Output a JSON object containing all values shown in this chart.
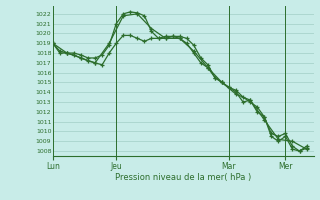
{
  "background_color": "#c8ece8",
  "grid_color": "#a8d4cc",
  "line_color": "#2d6e2d",
  "ylabel": "Pression niveau de la mer( hPa )",
  "ylim": [
    1007.5,
    1022.8
  ],
  "yticks": [
    1008,
    1009,
    1010,
    1011,
    1012,
    1013,
    1014,
    1015,
    1016,
    1017,
    1018,
    1019,
    1020,
    1021,
    1022
  ],
  "day_labels": [
    "Lun",
    "Jeu",
    "Mar",
    "Mer"
  ],
  "day_positions": [
    0,
    9,
    25,
    33
  ],
  "xlim": [
    0,
    37
  ],
  "series1_x": [
    0,
    1,
    2,
    3,
    4,
    5,
    6,
    7,
    8,
    9,
    10,
    11,
    12,
    13,
    14,
    15,
    16,
    17,
    18,
    19,
    20,
    21,
    22,
    23,
    24,
    25,
    26,
    27,
    28,
    29,
    30,
    31,
    32,
    33,
    34,
    35,
    36
  ],
  "series1_y": [
    1019.0,
    1018.0,
    1018.0,
    1018.0,
    1017.8,
    1017.5,
    1017.5,
    1017.8,
    1018.8,
    1021.0,
    1022.0,
    1022.2,
    1022.1,
    1021.8,
    1020.2,
    1019.5,
    1019.5,
    1019.7,
    1019.7,
    1019.5,
    1018.8,
    1017.5,
    1016.8,
    1015.5,
    1015.0,
    1014.5,
    1014.0,
    1013.0,
    1013.2,
    1012.0,
    1011.5,
    1009.5,
    1009.0,
    1009.5,
    1008.2,
    1008.0,
    1008.3
  ],
  "series2_x": [
    0,
    1,
    2,
    3,
    4,
    5,
    6,
    7,
    8,
    9,
    10,
    11,
    12,
    13,
    14,
    15,
    16,
    17,
    18,
    19,
    20,
    21,
    22,
    23,
    24,
    25,
    26,
    27,
    28,
    29,
    30,
    31,
    32,
    33,
    34,
    35,
    36
  ],
  "series2_y": [
    1019.0,
    1018.2,
    1018.0,
    1017.8,
    1017.5,
    1017.2,
    1017.0,
    1016.8,
    1018.0,
    1019.0,
    1019.8,
    1019.8,
    1019.5,
    1019.2,
    1019.5,
    1019.5,
    1019.7,
    1019.7,
    1019.5,
    1019.0,
    1018.0,
    1017.0,
    1016.5,
    1015.5,
    1015.0,
    1014.5,
    1014.2,
    1013.5,
    1013.0,
    1012.5,
    1011.5,
    1009.8,
    1009.5,
    1009.8,
    1008.5,
    1008.0,
    1008.5
  ],
  "series3_x": [
    0,
    2,
    4,
    6,
    8,
    10,
    12,
    14,
    16,
    18,
    20,
    22,
    24,
    26,
    28,
    30,
    32,
    34,
    36
  ],
  "series3_y": [
    1019.0,
    1018.0,
    1017.5,
    1017.0,
    1019.0,
    1021.8,
    1022.0,
    1020.5,
    1019.5,
    1019.5,
    1018.2,
    1016.5,
    1015.0,
    1013.8,
    1013.2,
    1011.2,
    1009.2,
    1009.0,
    1008.2
  ]
}
